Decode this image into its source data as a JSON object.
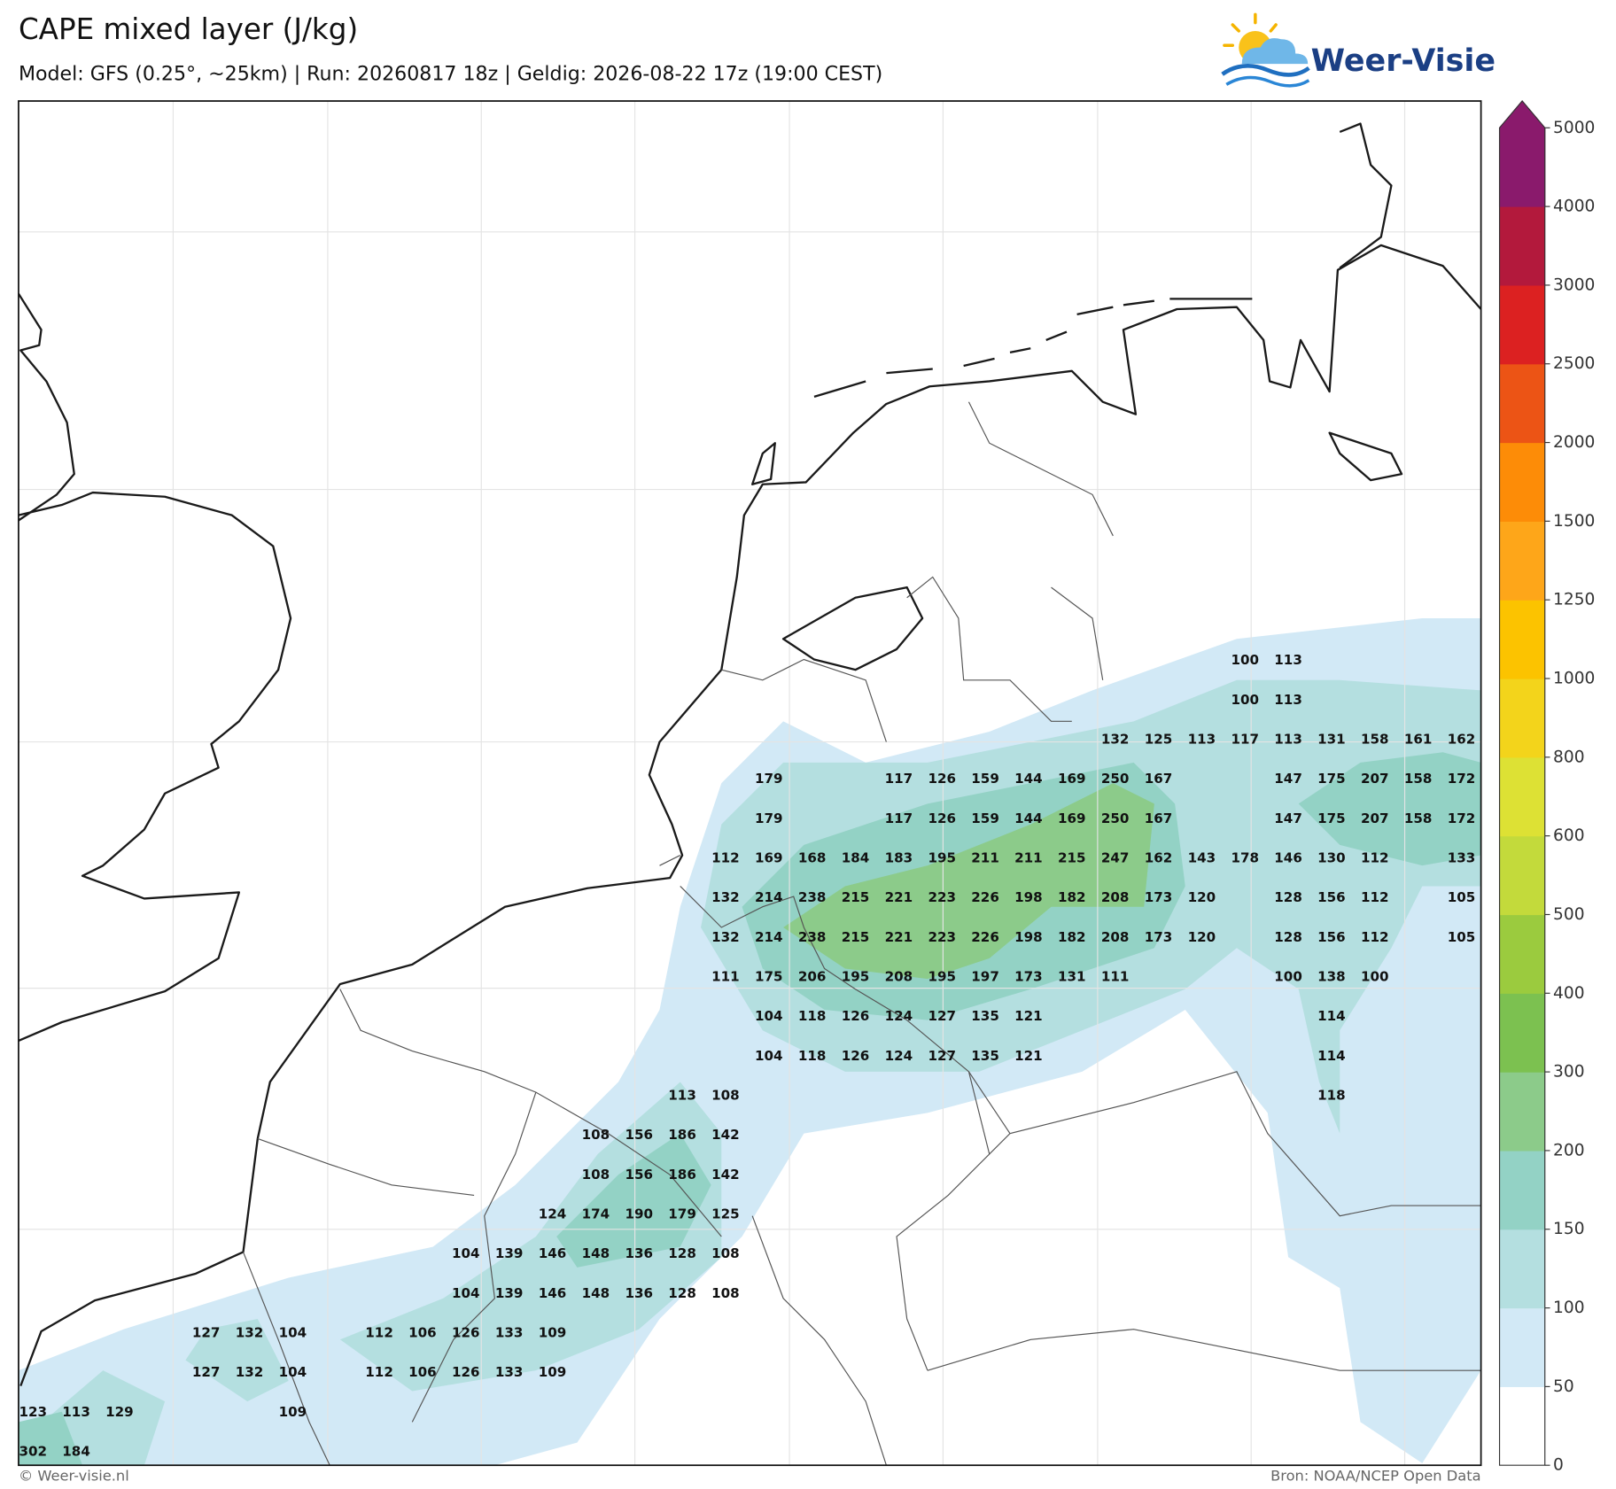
{
  "header": {
    "title": "CAPE mixed layer (J/kg)",
    "subtitle": "Model: GFS (0.25°, ~25km)  |  Run: 20260817 18z  |  Geldig: 2026-08-22 17z (19:00 CEST)"
  },
  "logo": {
    "text": "Weer-Visie"
  },
  "colorbar": {
    "ticks": [
      0,
      50,
      100,
      150,
      200,
      300,
      400,
      500,
      600,
      800,
      1000,
      1250,
      1500,
      2000,
      2500,
      3000,
      4000,
      5000
    ],
    "colors": [
      "#ffffff",
      "#d2e9f6",
      "#b4dfe0",
      "#93d2c5",
      "#8ccb8a",
      "#7cc150",
      "#9bcb3e",
      "#c3da3b",
      "#dde134",
      "#f3d41b",
      "#fcc300",
      "#fea619",
      "#fd8c07",
      "#ec5415",
      "#dc2121",
      "#b3193c",
      "#8a1a6c"
    ]
  },
  "value_labels": [
    [
      100,
      113
    ],
    [
      100,
      113
    ],
    [
      132,
      125,
      113,
      117,
      113,
      131,
      158,
      161,
      162
    ],
    [
      179,
      117,
      126,
      159,
      144,
      169,
      250,
      167,
      147,
      175,
      207,
      158,
      172
    ],
    [
      179,
      117,
      126,
      159,
      144,
      169,
      250,
      167,
      147,
      175,
      207,
      158,
      172
    ],
    [
      112,
      169,
      168,
      184,
      183,
      195,
      211,
      211,
      215,
      247,
      162,
      143,
      178,
      146,
      130,
      112,
      133
    ],
    [
      132,
      214,
      238,
      215,
      221,
      223,
      226,
      198,
      182,
      208,
      173,
      120,
      128,
      156,
      112,
      105
    ],
    [
      132,
      214,
      238,
      215,
      221,
      223,
      226,
      198,
      182,
      208,
      173,
      120,
      128,
      156,
      112,
      105
    ],
    [
      111,
      175,
      206,
      195,
      208,
      195,
      197,
      173,
      131,
      111,
      100,
      138,
      100
    ],
    [
      104,
      118,
      126,
      124,
      127,
      135,
      121,
      114
    ],
    [
      104,
      118,
      126,
      124,
      127,
      135,
      121,
      114
    ],
    [
      113,
      108,
      118
    ],
    [
      108,
      156,
      186,
      142
    ],
    [
      108,
      156,
      186,
      142
    ],
    [
      124,
      174,
      190,
      179,
      125
    ],
    [
      104,
      139,
      146,
      148,
      136,
      128,
      108
    ],
    [
      104,
      139,
      146,
      148,
      136,
      128,
      108
    ],
    [
      127,
      132,
      104,
      112,
      106,
      126,
      133,
      109
    ],
    [
      127,
      132,
      104,
      112,
      106,
      126,
      133,
      109
    ],
    [
      123,
      113,
      129,
      109
    ],
    [
      302,
      184
    ]
  ],
  "footer": {
    "credit": "© Weer-visie.nl",
    "source": "Bron: NOAA/NCEP Open Data"
  }
}
